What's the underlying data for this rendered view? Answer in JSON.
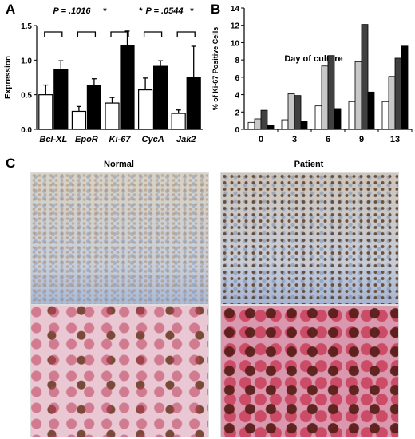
{
  "panels": {
    "a": "A",
    "b": "B",
    "c": "C"
  },
  "chart_data": [
    {
      "type": "bar",
      "categories": [
        "Bcl-XL",
        "EpoR",
        "Ki-67",
        "CycA",
        "Jak2"
      ],
      "series": [
        {
          "values": [
            0.5,
            0.26,
            0.38,
            0.57,
            0.23
          ],
          "errors": [
            0.14,
            0.07,
            0.08,
            0.17,
            0.05
          ],
          "color": "#ffffff"
        },
        {
          "values": [
            0.87,
            0.63,
            1.21,
            0.91,
            0.75
          ],
          "errors": [
            0.12,
            0.1,
            0.21,
            0.08,
            0.45
          ],
          "color": "#000000"
        }
      ],
      "ylabel": "Expression",
      "ylim": [
        0,
        1.5
      ],
      "yticks": [
        "0.0",
        "0.5",
        "1.0",
        "1.5"
      ],
      "pvalues": [
        "P = .1016",
        "*",
        "*",
        "P = .0544",
        "*"
      ],
      "grid": false
    },
    {
      "type": "bar",
      "title": "Day of culture",
      "categories": [
        "0",
        "3",
        "6",
        "9",
        "13"
      ],
      "series": [
        {
          "values": [
            0.8,
            1.1,
            2.7,
            3.2,
            3.2
          ],
          "color": "#ffffff"
        },
        {
          "values": [
            1.2,
            4.1,
            7.3,
            7.8,
            6.1
          ],
          "color": "#c8c8c8"
        },
        {
          "values": [
            2.2,
            3.9,
            8.5,
            12.1,
            8.2
          ],
          "color": "#404040"
        },
        {
          "values": [
            0.5,
            0.9,
            2.4,
            4.3,
            9.6
          ],
          "color": "#000000"
        }
      ],
      "ylabel": "% of Ki-67 Positive Cells",
      "ylim": [
        0,
        14
      ],
      "yticks": [
        "0",
        "2",
        "4",
        "6",
        "8",
        "10",
        "12",
        "14"
      ],
      "grid": false
    }
  ],
  "images": {
    "normal_title": "Normal",
    "patient_title": "Patient"
  }
}
